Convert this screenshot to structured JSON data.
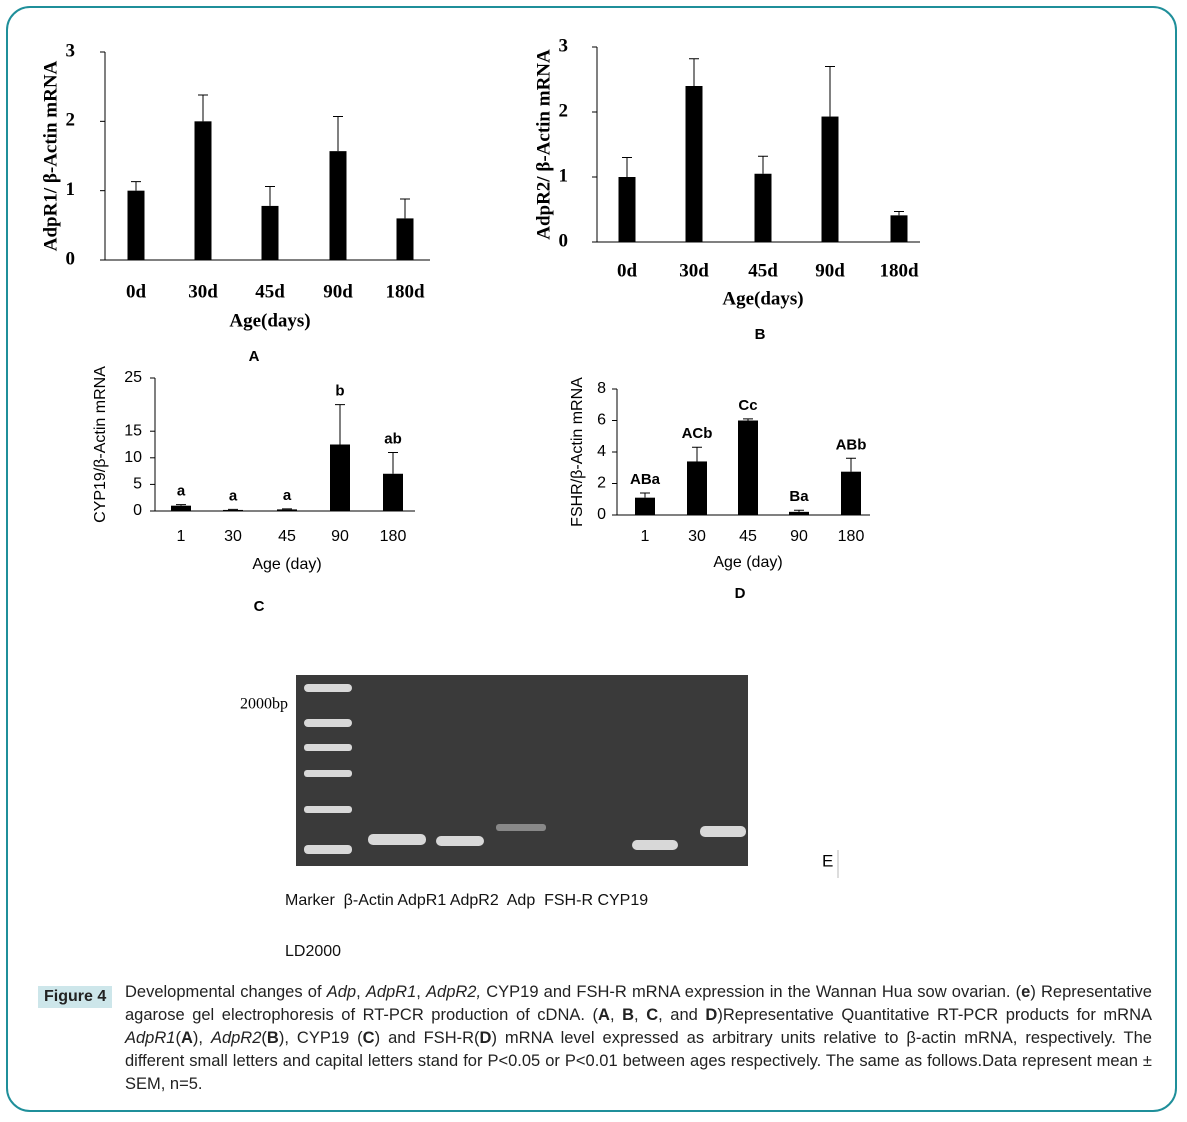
{
  "chart_data": [
    {
      "type": "bar",
      "panel": "A",
      "ylabel": "AdpR1/ β-Actin mRNA",
      "xlabel": "Age(days)",
      "categories": [
        "0d",
        "30d",
        "45d",
        "90d",
        "180d"
      ],
      "values": [
        1.0,
        2.0,
        0.78,
        1.57,
        0.6
      ],
      "errors": [
        0.13,
        0.38,
        0.28,
        0.5,
        0.28
      ],
      "color": "#000000",
      "ylim": [
        0,
        3
      ],
      "yticks": [
        0,
        1,
        2,
        3
      ]
    },
    {
      "type": "bar",
      "panel": "B",
      "ylabel": "AdpR2/ β-Actin mRNA",
      "xlabel": "Age(days)",
      "categories": [
        "0d",
        "30d",
        "45d",
        "90d",
        "180d"
      ],
      "values": [
        1.0,
        2.4,
        1.05,
        1.93,
        0.41
      ],
      "errors": [
        0.3,
        0.42,
        0.27,
        0.77,
        0.06
      ],
      "color": "#000000",
      "ylim": [
        0,
        3
      ],
      "yticks": [
        0,
        1,
        2,
        3
      ]
    },
    {
      "type": "bar",
      "panel": "C",
      "ylabel": "CYP19/β-Actin mRNA",
      "xlabel": "Age (day)",
      "categories": [
        "1",
        "30",
        "45",
        "90",
        "180"
      ],
      "values": [
        1.0,
        0.2,
        0.3,
        12.5,
        7.0
      ],
      "errors": [
        0.2,
        0.1,
        0.1,
        7.5,
        4.0
      ],
      "annotations": [
        "a",
        "a",
        "a",
        "b",
        "ab"
      ],
      "color": "#000000",
      "ylim": [
        0,
        25
      ],
      "yticks": [
        0,
        5,
        10,
        15,
        25
      ]
    },
    {
      "type": "bar",
      "panel": "D",
      "ylabel": "FSHR/β-Actin mRNA",
      "xlabel": "Age (day)",
      "categories": [
        "1",
        "30",
        "45",
        "90",
        "180"
      ],
      "values": [
        1.1,
        3.4,
        6.0,
        0.2,
        2.75
      ],
      "errors": [
        0.3,
        0.9,
        0.1,
        0.1,
        0.85
      ],
      "annotations": [
        "ABa",
        "ACb",
        "Cc",
        "Ba",
        "ABb"
      ],
      "color": "#000000",
      "ylim": [
        0,
        8
      ],
      "yticks": [
        0,
        2,
        4,
        6,
        8
      ]
    }
  ],
  "gel": {
    "marker_label": "2000bp",
    "panel": "E",
    "lanes": "Marker  β-Actin AdpR1 AdpR2  Adp  FSH-R CYP19",
    "ladder": "LD2000"
  },
  "caption": {
    "label": "Figure 4",
    "runs": [
      "Developmental changes of ",
      "Adp",
      ", ",
      "AdpR1",
      ", ",
      "AdpR2,",
      " CYP19 and FSH-R mRNA expression in the Wannan Hua sow ovarian. (",
      "e",
      ") Representative agarose gel electrophoresis of RT-PCR production of cDNA. (",
      "A",
      ", ",
      "B",
      ", ",
      "C",
      ", and ",
      "D",
      ")Representative Quantitative RT-PCR products for mRNA ",
      "AdpR1",
      "(",
      "A",
      "), ",
      "AdpR2",
      "(",
      "B",
      "), CYP19 (",
      "C",
      ") and FSH-R(",
      "D",
      ") mRNA level expressed as arbitrary units relative to β-actin mRNA, respectively. The different small letters and capital letters stand for P<0.05 or P<0.01 between ages respectively. The same as follows.Data represent mean ± SEM, n=5."
    ]
  }
}
